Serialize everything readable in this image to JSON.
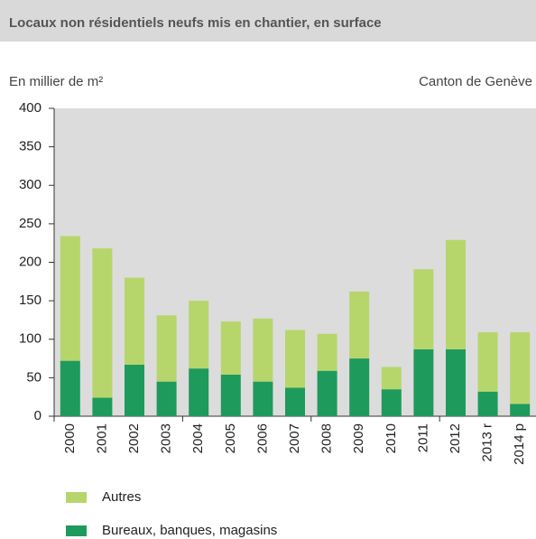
{
  "chart_data": {
    "type": "stacked_bar",
    "title": "Locaux non résidentiels neufs mis en chantier, en surface",
    "y_label": "En millier de m²",
    "subtitle": "Canton de Genève",
    "categories": [
      "2000",
      "2001",
      "2002",
      "2003",
      "2004",
      "2005",
      "2006",
      "2007",
      "2008",
      "2009",
      "2010",
      "2011",
      "2012",
      "2013 r",
      "2014 p"
    ],
    "series": [
      {
        "name": "Bureaux, banques, magasins",
        "color": "#1e9a5c",
        "values": [
          72,
          24,
          67,
          45,
          62,
          54,
          45,
          37,
          59,
          75,
          35,
          87,
          87,
          32,
          16
        ]
      },
      {
        "name": "Autres",
        "color": "#b6d66c",
        "values": [
          162,
          194,
          113,
          86,
          88,
          69,
          82,
          75,
          48,
          87,
          29,
          104,
          142,
          77,
          93
        ]
      }
    ],
    "ylim": [
      0,
      400
    ],
    "yticks": [
      0,
      50,
      100,
      150,
      200,
      250,
      300,
      350,
      400
    ],
    "grid": false
  }
}
